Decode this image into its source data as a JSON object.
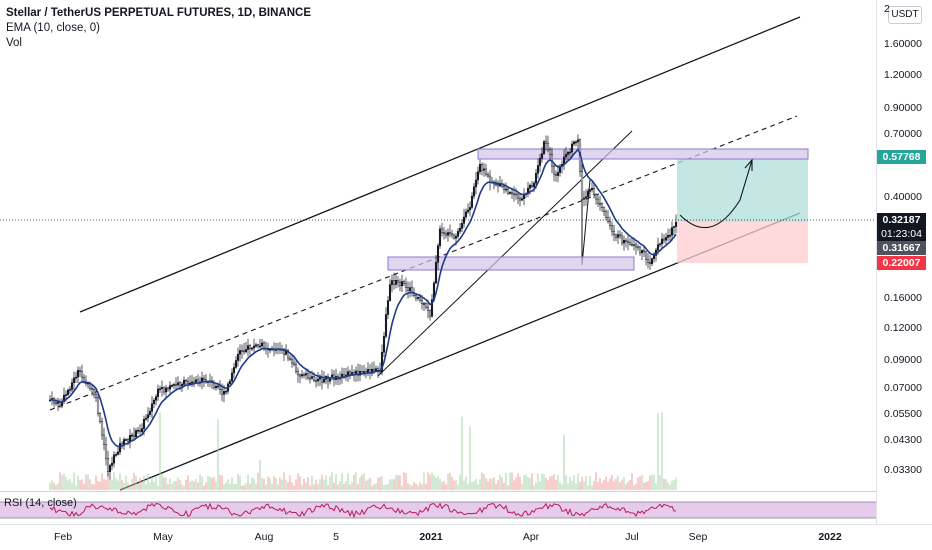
{
  "legend": {
    "title": "Stellar / TetherUS PERPETUAL FUTURES, 1D, BINANCE",
    "ema": "EMA (10, close, 0)",
    "vol": "Vol"
  },
  "currency": "USDT",
  "price_axis": {
    "ticks": [
      "2",
      "1.60000",
      "1.20000",
      "0.90000",
      "0.70000",
      "0.40000",
      "0.16000",
      "0.12000",
      "0.09000",
      "0.07000",
      "0.05500",
      "0.04300",
      "0.03300"
    ],
    "badges": {
      "target": "0.57768",
      "last": "0.32187",
      "countdown": "01:23:04",
      "prev": "0.31667",
      "stop": "0.22007"
    }
  },
  "time_axis": {
    "ticks": [
      "Feb",
      "May",
      "Aug",
      "5",
      "2021",
      "Apr",
      "Jul",
      "Sep",
      "2022"
    ]
  },
  "rsi": {
    "label": "RSI (14, close)"
  },
  "colors": {
    "candle_up": "#131722",
    "ema": "#1e3a8a",
    "target_zone": "#26a69a",
    "stop_zone": "#ef5350",
    "box": "#9575cd",
    "rsi_line": "#b71c5c",
    "rsi_band": "#e1bee7",
    "badge_target": "#26a69a",
    "badge_last": "#131722",
    "badge_prev": "#50535e",
    "badge_stop": "#f23645"
  }
}
